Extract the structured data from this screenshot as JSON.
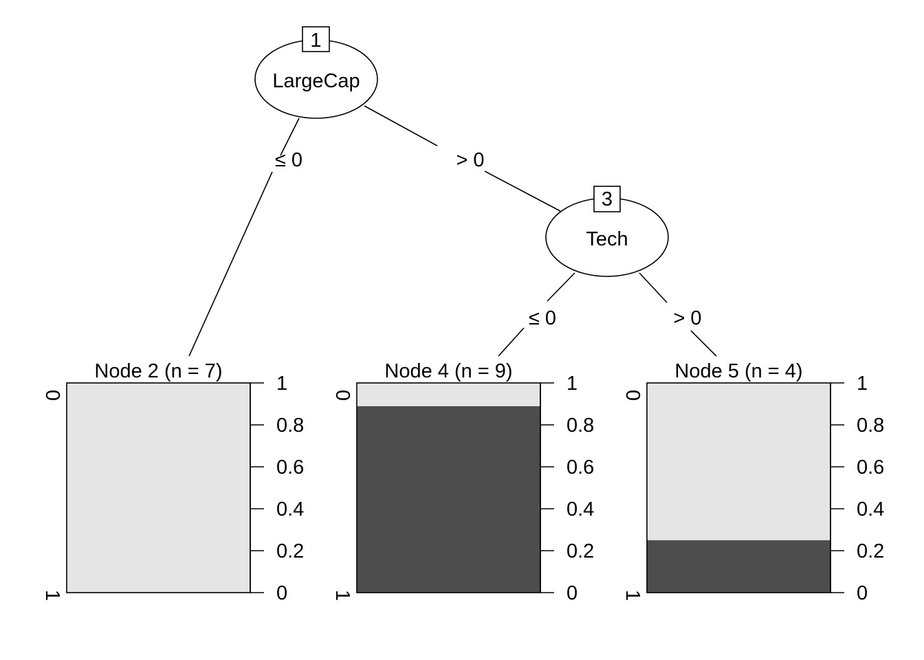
{
  "tree": {
    "inner_nodes": [
      {
        "id": "1",
        "variable": "LargeCap"
      },
      {
        "id": "3",
        "variable": "Tech"
      }
    ],
    "edges": [
      {
        "label": "≤ 0"
      },
      {
        "label": "> 0"
      },
      {
        "label": "≤ 0"
      },
      {
        "label": "> 0"
      }
    ],
    "terminal_nodes": [
      {
        "title": "Node 2 (n = 7)",
        "n": 7,
        "proportion_0": 1.0,
        "proportion_1": 0.0
      },
      {
        "title": "Node 4 (n = 9)",
        "n": 9,
        "proportion_0": 0.111,
        "proportion_1": 0.889
      },
      {
        "title": "Node 5 (n = 4)",
        "n": 4,
        "proportion_0": 0.75,
        "proportion_1": 0.25
      }
    ],
    "class_labels": {
      "top": "0",
      "bottom": "1"
    },
    "axis_ticks": [
      "0",
      "0.2",
      "0.4",
      "0.6",
      "0.8",
      "1"
    ],
    "colors": {
      "class_0": "#e5e5e5",
      "class_1": "#4d4d4d"
    }
  }
}
